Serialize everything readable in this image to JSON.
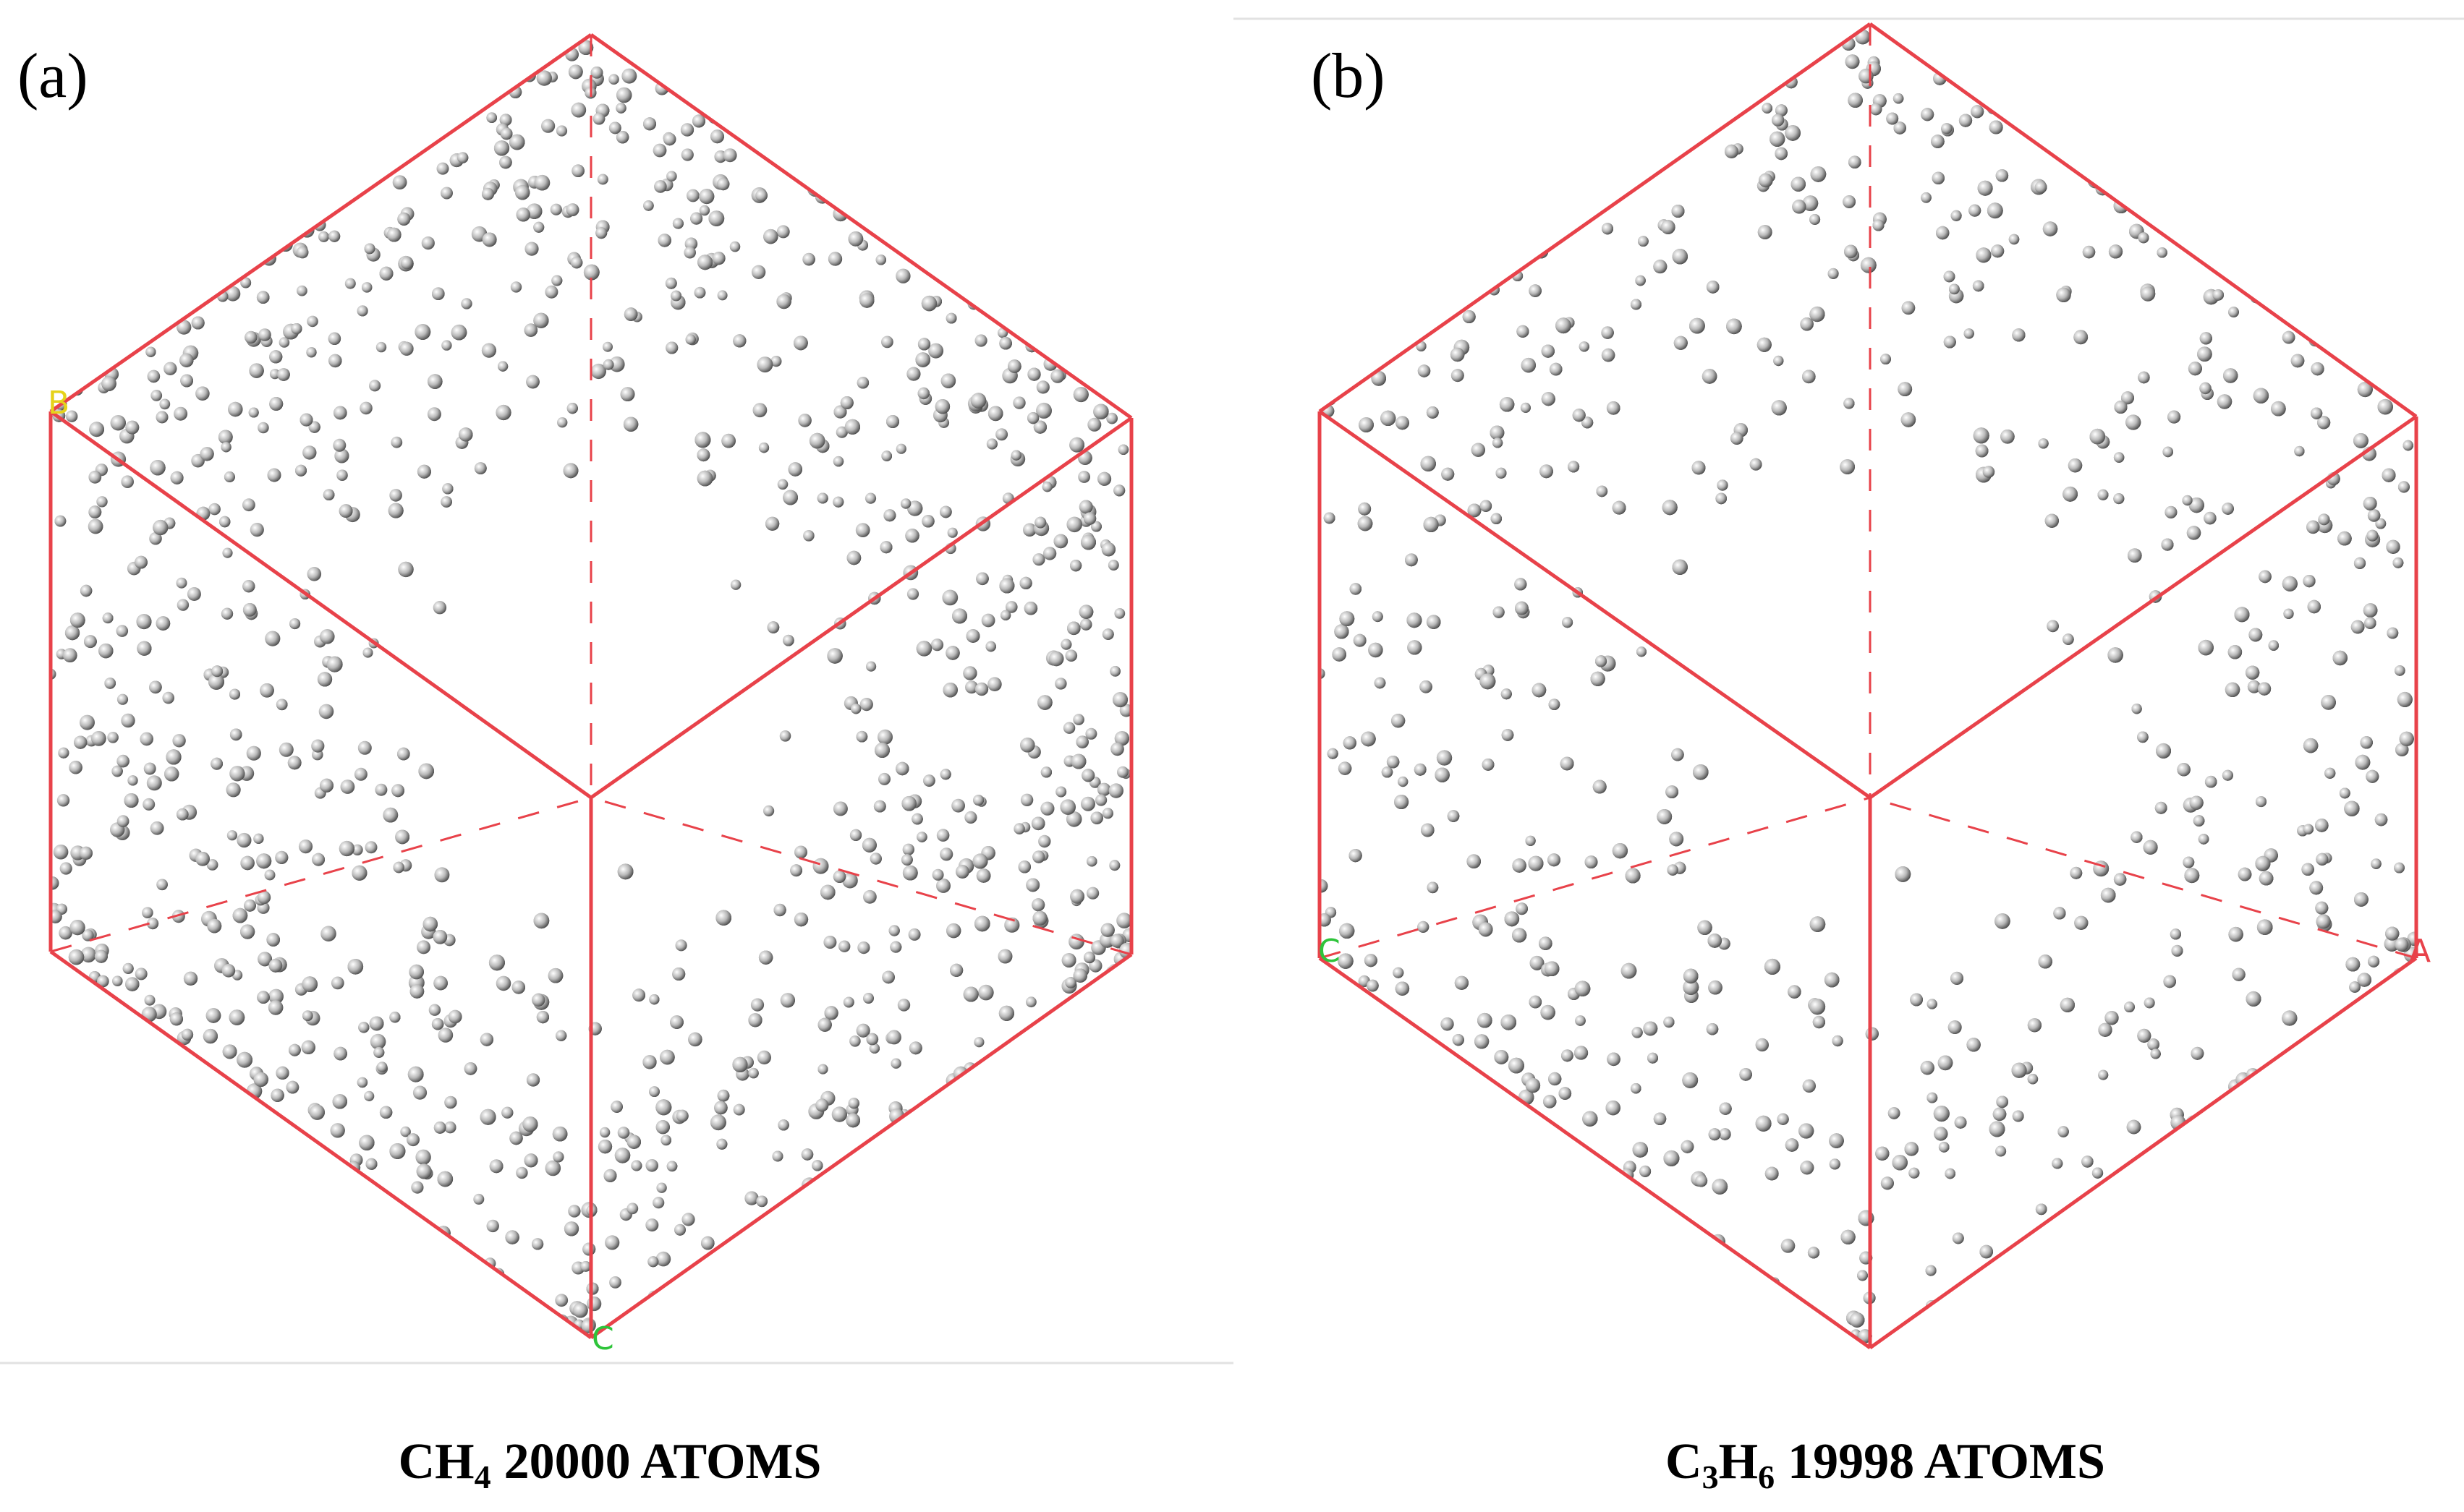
{
  "panels": [
    {
      "label": "(a)",
      "axis_labels": [
        "B",
        "C"
      ],
      "caption": [
        {
          "text": "CH"
        },
        {
          "sub": "4"
        },
        {
          "text": "20000 ATOMS"
        }
      ]
    },
    {
      "label": "(b)",
      "axis_labels": [
        "C",
        "A"
      ],
      "caption": [
        {
          "text": "C"
        },
        {
          "sub": "3"
        },
        {
          "text": "H"
        },
        {
          "sub": "6"
        },
        {
          "text": "19998 ATOMS"
        }
      ]
    }
  ]
}
